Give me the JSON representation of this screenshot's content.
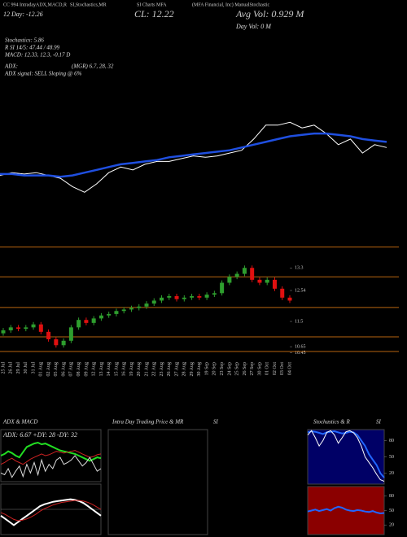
{
  "header": {
    "line1": [
      "CC 994 IntradayADX,MACD,R",
      "SI,Stochastics,MR",
      "SI Charts MFA",
      "(MFA Financial, Inc) ManualStochastic"
    ],
    "close": "CL: 12.22",
    "avg_vol": "Avg Vol: 0.929 M",
    "day_change": "12 Day: -12.26",
    "day_vol": "Day Vol: 0  M",
    "stochastics": "Stochastics: 5.86",
    "rsi": "R   SI 14/5: 47.44 / 48.99",
    "macd": "MACD: 12.33, 12.3, -0.17 D",
    "adx": "ADX:",
    "mgr": "(MGR) 6.7, 28, 32",
    "adx_signal": "ADX  signal: SELL Sloping @ 6%"
  },
  "chart_data": [
    {
      "type": "line",
      "ylim": [
        10.8,
        14
      ],
      "series": [
        {
          "color": "#ffffff",
          "values": [
            11.8,
            11.9,
            11.85,
            11.9,
            11.8,
            11.7,
            11.4,
            11.2,
            11.5,
            11.9,
            12.1,
            12.0,
            12.2,
            12.3,
            12.3,
            12.4,
            12.5,
            12.45,
            12.5,
            12.6,
            12.7,
            13.1,
            13.6,
            13.6,
            13.7,
            13.5,
            13.6,
            13.3,
            12.9,
            13.1,
            12.6,
            12.9,
            12.8
          ]
        },
        {
          "color": "#1f4fe0",
          "values": [
            11.85,
            11.85,
            11.8,
            11.8,
            11.8,
            11.75,
            11.8,
            11.9,
            12.0,
            12.1,
            12.2,
            12.25,
            12.3,
            12.35,
            12.45,
            12.5,
            12.55,
            12.6,
            12.65,
            12.7,
            12.8,
            12.9,
            13.0,
            13.1,
            13.2,
            13.25,
            13.3,
            13.3,
            13.25,
            13.2,
            13.1,
            13.05,
            13.0
          ]
        }
      ]
    },
    {
      "type": "candlestick",
      "ylim": [
        10.27,
        14.1
      ],
      "yticks": [
        13.3,
        12.54,
        11.5,
        10.65,
        10.45
      ],
      "levels": [
        14.0,
        13.0,
        11.97,
        10.98,
        10.49
      ],
      "level_color": "#b8650f",
      "up_color": "#2e9e2e",
      "down_color": "#e01010",
      "categories": [
        "25 Jul",
        "26 Jul",
        "29 Jul",
        "30 Jul",
        "31 Jul",
        "01 Aug",
        "02 Aug",
        "05 Aug",
        "06 Aug",
        "07 Aug",
        "08 Aug",
        "09 Aug",
        "12 Aug",
        "13 Aug",
        "14 Aug",
        "15 Aug",
        "16 Aug",
        "19 Aug",
        "20 Aug",
        "21 Aug",
        "22 Aug",
        "23 Aug",
        "26 Aug",
        "27 Aug",
        "28 Aug",
        "29 Aug",
        "30 Aug",
        "19 Sep",
        "20 Sep",
        "23 Sep",
        "24 Sep",
        "25 Sep",
        "26 Sep",
        "27 Sep",
        "30 Sep",
        "01 Oct",
        "02 Oct",
        "03 Oct",
        "04 Oct"
      ],
      "open": [
        11.1,
        11.2,
        11.3,
        11.25,
        11.3,
        11.4,
        11.15,
        10.9,
        10.7,
        10.85,
        11.3,
        11.55,
        11.45,
        11.6,
        11.7,
        11.75,
        11.85,
        11.9,
        11.95,
        12.0,
        12.1,
        12.2,
        12.3,
        12.35,
        12.25,
        12.3,
        12.35,
        12.3,
        12.4,
        12.45,
        12.8,
        13.0,
        13.1,
        13.3,
        12.9,
        12.8,
        12.9,
        12.6,
        12.3
      ],
      "high": [
        11.28,
        11.38,
        11.38,
        11.38,
        11.48,
        11.48,
        11.23,
        10.98,
        10.93,
        11.38,
        11.63,
        11.63,
        11.68,
        11.78,
        11.83,
        11.93,
        11.98,
        12.03,
        12.08,
        12.18,
        12.28,
        12.38,
        12.43,
        12.43,
        12.38,
        12.43,
        12.43,
        12.48,
        12.53,
        12.88,
        13.08,
        13.18,
        13.38,
        13.38,
        12.98,
        12.98,
        12.98,
        12.68,
        12.38
      ],
      "low": [
        11.02,
        11.12,
        11.17,
        11.17,
        11.22,
        11.07,
        10.82,
        10.62,
        10.62,
        10.77,
        11.22,
        11.37,
        11.37,
        11.52,
        11.62,
        11.67,
        11.77,
        11.82,
        11.87,
        11.92,
        12.02,
        12.12,
        12.22,
        12.17,
        12.17,
        12.22,
        12.22,
        12.22,
        12.32,
        12.37,
        12.72,
        12.92,
        13.02,
        12.82,
        12.72,
        12.72,
        12.52,
        12.22,
        12.12
      ],
      "close": [
        11.2,
        11.3,
        11.25,
        11.3,
        11.4,
        11.15,
        10.9,
        10.7,
        10.85,
        11.3,
        11.55,
        11.45,
        11.6,
        11.7,
        11.75,
        11.85,
        11.9,
        11.95,
        12.0,
        12.1,
        12.2,
        12.3,
        12.35,
        12.25,
        12.3,
        12.35,
        12.3,
        12.4,
        12.45,
        12.8,
        13.0,
        13.1,
        13.3,
        12.9,
        12.8,
        12.9,
        12.6,
        12.3,
        12.2
      ]
    },
    {
      "type": "line",
      "title": "ADX  & MACD",
      "annotation": "ADX: 6.67 +DY: 28 -DY: 32",
      "ylim": [
        0,
        60
      ],
      "series": [
        {
          "color": "#22dd22",
          "values": [
            30,
            32,
            35,
            33,
            30,
            28,
            34,
            40,
            42,
            44,
            45,
            43,
            44,
            42,
            40,
            38,
            36,
            35,
            34,
            33,
            32,
            30,
            28,
            26,
            24,
            26,
            28,
            27
          ]
        },
        {
          "color": "#cc2222",
          "values": [
            20,
            22,
            25,
            27,
            24,
            22,
            20,
            23,
            26,
            28,
            30,
            32,
            30,
            31,
            33,
            35,
            34,
            33,
            34,
            35,
            36,
            34,
            32,
            30,
            28,
            29,
            31,
            32
          ]
        },
        {
          "color": "#dddddd",
          "values": [
            10,
            8,
            15,
            5,
            12,
            18,
            6,
            20,
            10,
            22,
            8,
            25,
            12,
            20,
            15,
            25,
            28,
            20,
            22,
            25,
            30,
            24,
            18,
            22,
            28,
            20,
            12,
            15
          ]
        }
      ]
    },
    {
      "type": "line",
      "ylim": [
        -0.4,
        0.4
      ],
      "zero": 0,
      "series": [
        {
          "color": "#ffffff",
          "values": [
            -0.1,
            -0.15,
            -0.2,
            -0.25,
            -0.2,
            -0.15,
            -0.1,
            -0.05,
            0,
            0.05,
            0.08,
            0.1,
            0.12,
            0.13,
            0.14,
            0.15,
            0.16,
            0.15,
            0.13,
            0.1,
            0.05,
            0,
            -0.05,
            -0.1
          ]
        },
        {
          "color": "#cc2222",
          "values": [
            -0.05,
            -0.08,
            -0.12,
            -0.16,
            -0.18,
            -0.17,
            -0.15,
            -0.12,
            -0.08,
            -0.03,
            0.01,
            0.04,
            0.07,
            0.09,
            0.11,
            0.12,
            0.13,
            0.14,
            0.14,
            0.13,
            0.11,
            0.08,
            0.04,
            0
          ]
        }
      ]
    },
    {
      "type": "line",
      "title": "Intra Day Trading Price & MR",
      "title2": "SI",
      "series": []
    },
    {
      "type": "line",
      "title": "Stochastics & R",
      "title2": "SI",
      "ylim": [
        0,
        100
      ],
      "yticks": [
        80,
        50,
        20
      ],
      "background": "#000066",
      "series": [
        {
          "color": "#2266ff",
          "values": [
            95,
            97,
            96,
            94,
            92,
            95,
            96,
            97,
            95,
            93,
            94,
            96,
            95,
            90,
            80,
            70,
            55,
            45,
            35,
            20,
            12
          ]
        },
        {
          "color": "#ffffff",
          "values": [
            90,
            98,
            85,
            70,
            80,
            95,
            98,
            90,
            75,
            85,
            96,
            98,
            94,
            85,
            70,
            50,
            40,
            30,
            18,
            8,
            5
          ]
        }
      ]
    },
    {
      "type": "line",
      "ylim": [
        0,
        100
      ],
      "yticks": [
        80,
        50,
        20
      ],
      "background": "#8b0000",
      "series": [
        {
          "color": "#2266ff",
          "values": [
            48,
            50,
            52,
            49,
            51,
            53,
            50,
            55,
            58,
            56,
            52,
            50,
            49,
            51,
            50,
            48,
            47,
            49,
            46,
            44,
            45
          ]
        }
      ]
    }
  ]
}
